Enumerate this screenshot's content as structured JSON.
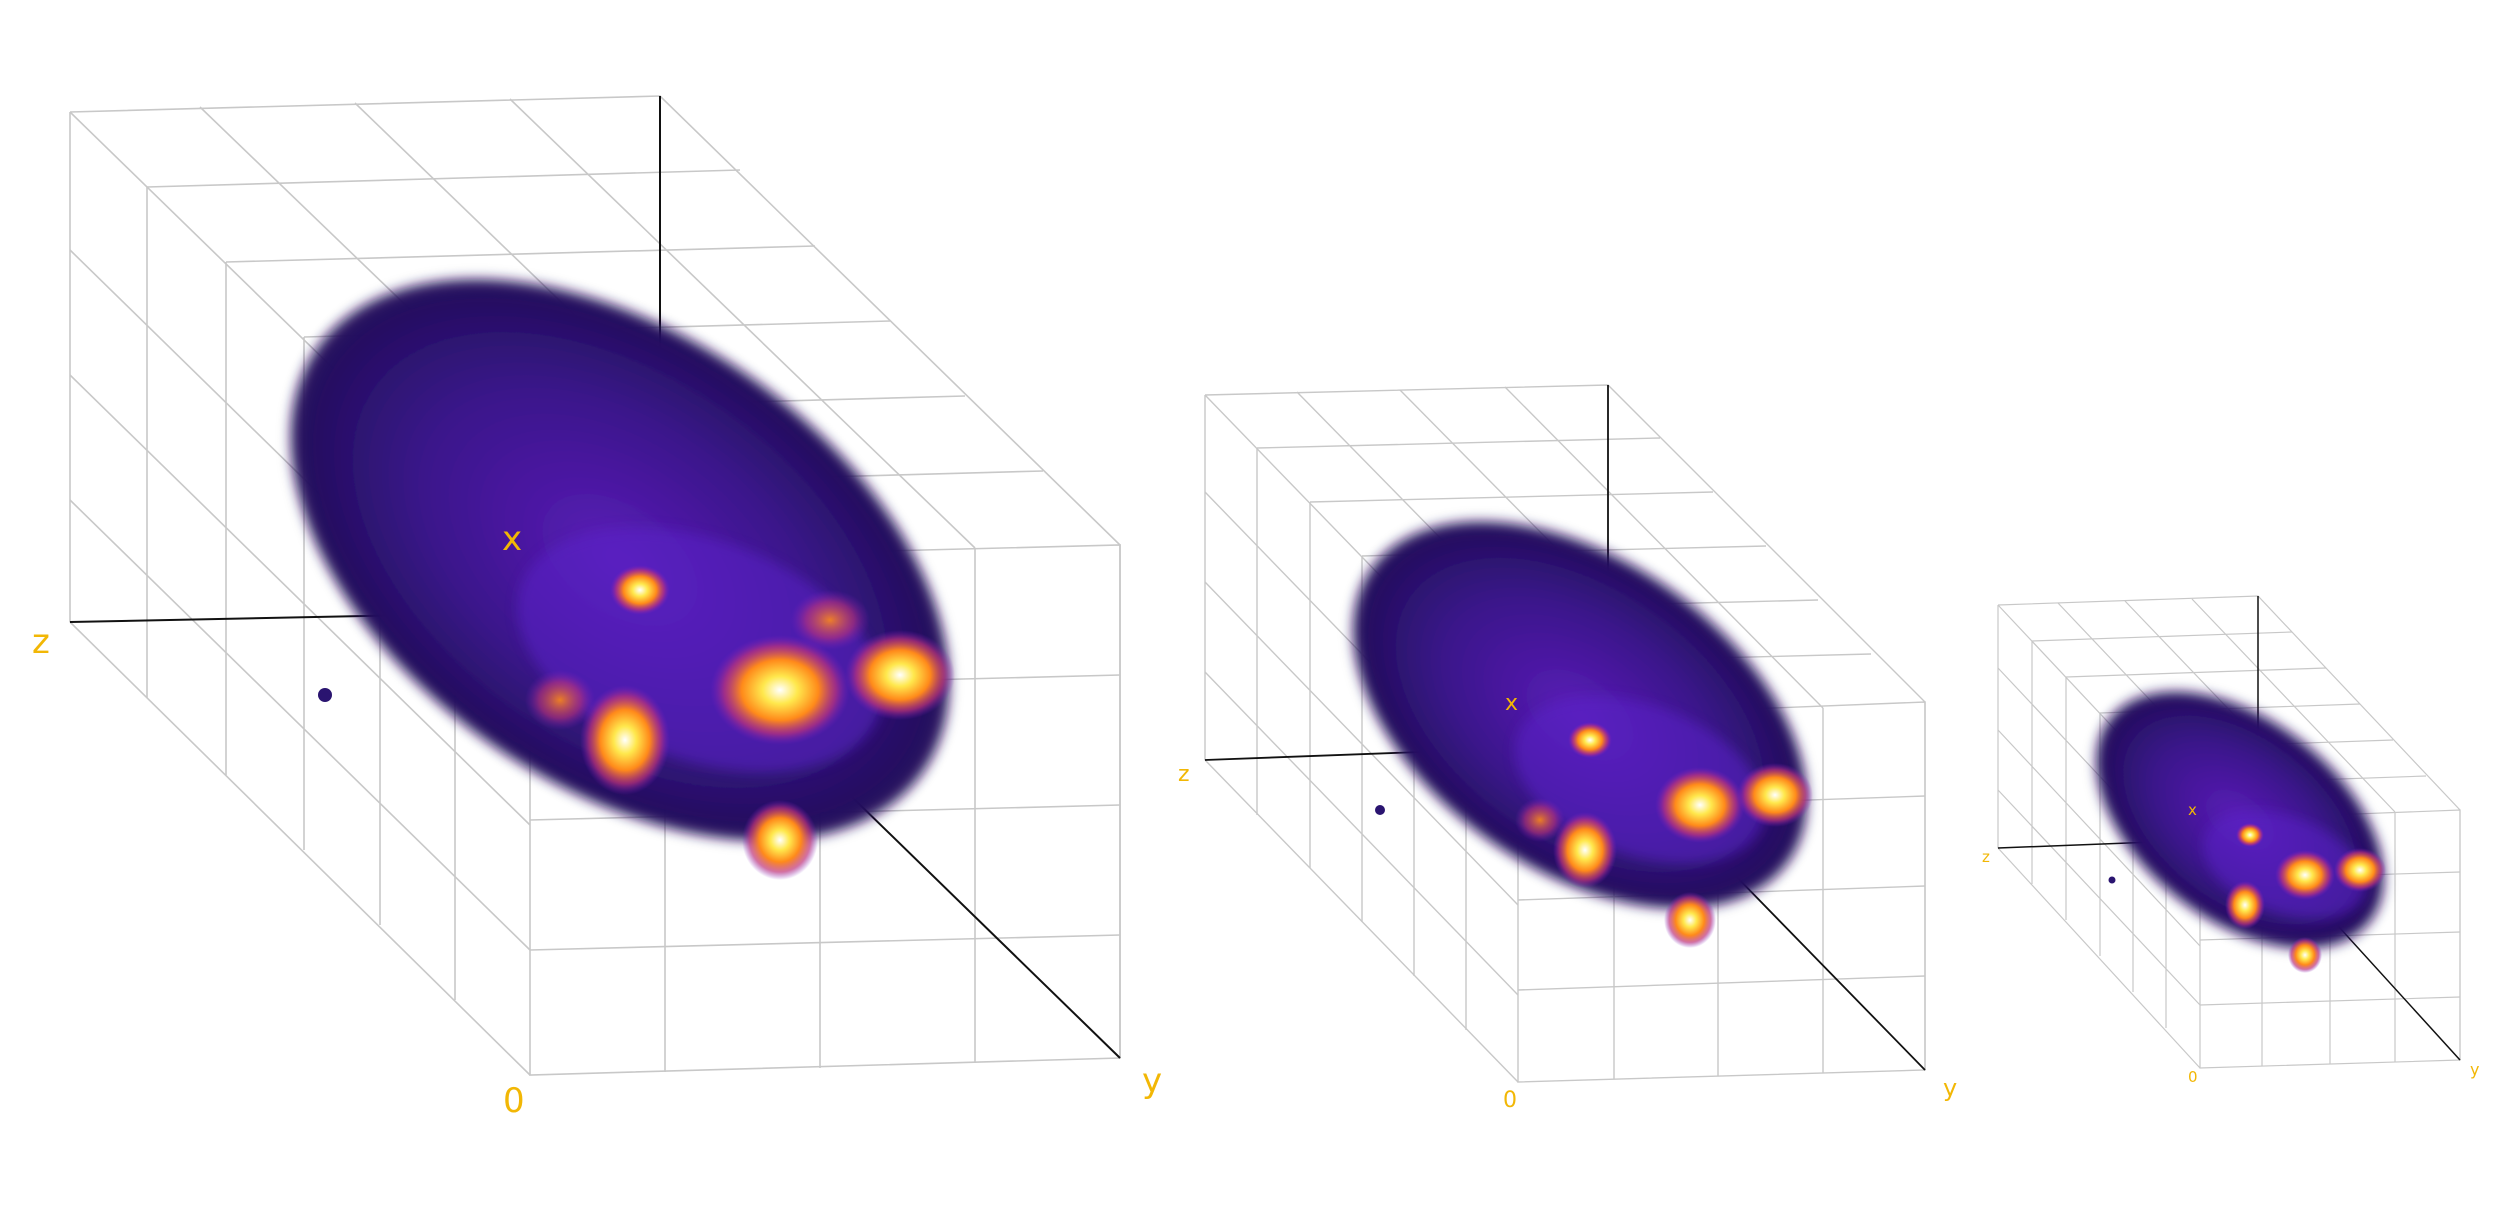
{
  "scene": {
    "label_color": "#f2b705",
    "volume_colormap": [
      "#1c0f4a",
      "#3a13a0",
      "#7a1fc0",
      "#c0347a",
      "#ff8a1a",
      "#ffe84d",
      "#ffffff"
    ]
  },
  "views": [
    {
      "id": "large",
      "labels": {
        "z": "z",
        "x": "x",
        "origin": "0",
        "y": "y"
      }
    },
    {
      "id": "medium",
      "labels": {
        "z": "z",
        "x": "x",
        "origin": "0",
        "y": "y"
      }
    },
    {
      "id": "small",
      "labels": {
        "z": "z",
        "x": "x",
        "origin": "0",
        "y": "y"
      }
    }
  ]
}
